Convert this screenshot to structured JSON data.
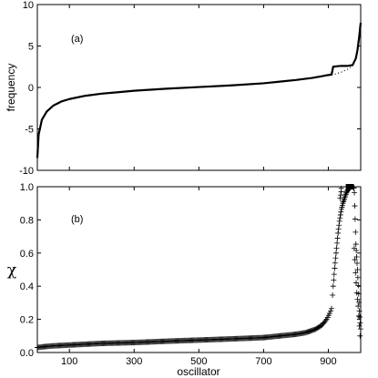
{
  "chart_data": [
    {
      "panel_label": "(a)",
      "type": "line",
      "ylabel": "frequency",
      "xlabel": "",
      "xlim": [
        1,
        1000
      ],
      "ylim": [
        -10,
        10
      ],
      "yticks": [
        "10",
        "5",
        "0",
        "-5",
        "-10"
      ],
      "series": [
        {
          "style": "solid",
          "x": [
            1,
            5,
            15,
            30,
            50,
            75,
            100,
            150,
            200,
            300,
            400,
            500,
            600,
            700,
            750,
            800,
            850,
            880,
            900,
            910,
            915,
            925,
            940,
            960,
            975,
            985,
            990,
            995,
            1000
          ],
          "y": [
            -8.5,
            -5.7,
            -3.9,
            -2.9,
            -2.2,
            -1.7,
            -1.4,
            -1.0,
            -0.75,
            -0.4,
            -0.15,
            0.05,
            0.25,
            0.5,
            0.7,
            0.9,
            1.15,
            1.35,
            1.5,
            1.55,
            2.5,
            2.55,
            2.6,
            2.6,
            2.7,
            3.5,
            4.5,
            6.0,
            7.8
          ]
        },
        {
          "style": "dotted",
          "x": [
            850,
            880,
            900,
            920,
            940,
            960,
            975,
            985,
            990,
            995,
            1000
          ],
          "y": [
            1.15,
            1.3,
            1.45,
            1.6,
            1.85,
            2.2,
            2.6,
            3.4,
            4.3,
            5.8,
            7.8
          ]
        }
      ]
    },
    {
      "panel_label": "(b)",
      "type": "scatter",
      "ylabel": "χ",
      "xlabel": "oscillator",
      "xlim": [
        1,
        1000
      ],
      "ylim": [
        0,
        1.0
      ],
      "xticks": [
        "100",
        "300",
        "500",
        "700",
        "900"
      ],
      "yticks": [
        "1.0",
        "0.8",
        "0.6",
        "0.4",
        "0.2",
        "0.0"
      ],
      "marker": "+",
      "series": [
        {
          "x": [
            1,
            20,
            50,
            100,
            200,
            300,
            400,
            500,
            600,
            700,
            750,
            800,
            830,
            860,
            880,
            895,
            905,
            910,
            915,
            920,
            925,
            930,
            935,
            940,
            945,
            950,
            955,
            960,
            965,
            970,
            975,
            980,
            985,
            990,
            993,
            996,
            1000
          ],
          "y": [
            0.03,
            0.035,
            0.04,
            0.045,
            0.055,
            0.06,
            0.068,
            0.075,
            0.082,
            0.09,
            0.1,
            0.11,
            0.12,
            0.14,
            0.165,
            0.2,
            0.24,
            0.265,
            0.4,
            0.52,
            0.62,
            0.72,
            0.8,
            0.86,
            0.9,
            0.93,
            0.96,
            0.98,
            0.99,
            1.0,
            1.0,
            0.99,
            0.66,
            0.5,
            0.38,
            0.25,
            0.13
          ]
        },
        {
          "x": [
            936,
            938,
            940,
            940,
            980,
            982,
            984,
            986,
            988,
            990,
            992,
            994,
            996,
            998
          ],
          "y": [
            0.93,
            0.95,
            0.97,
            0.99,
            0.63,
            0.56,
            0.48,
            0.42,
            0.36,
            0.32,
            0.28,
            0.22,
            0.16,
            0.1
          ]
        }
      ]
    }
  ]
}
